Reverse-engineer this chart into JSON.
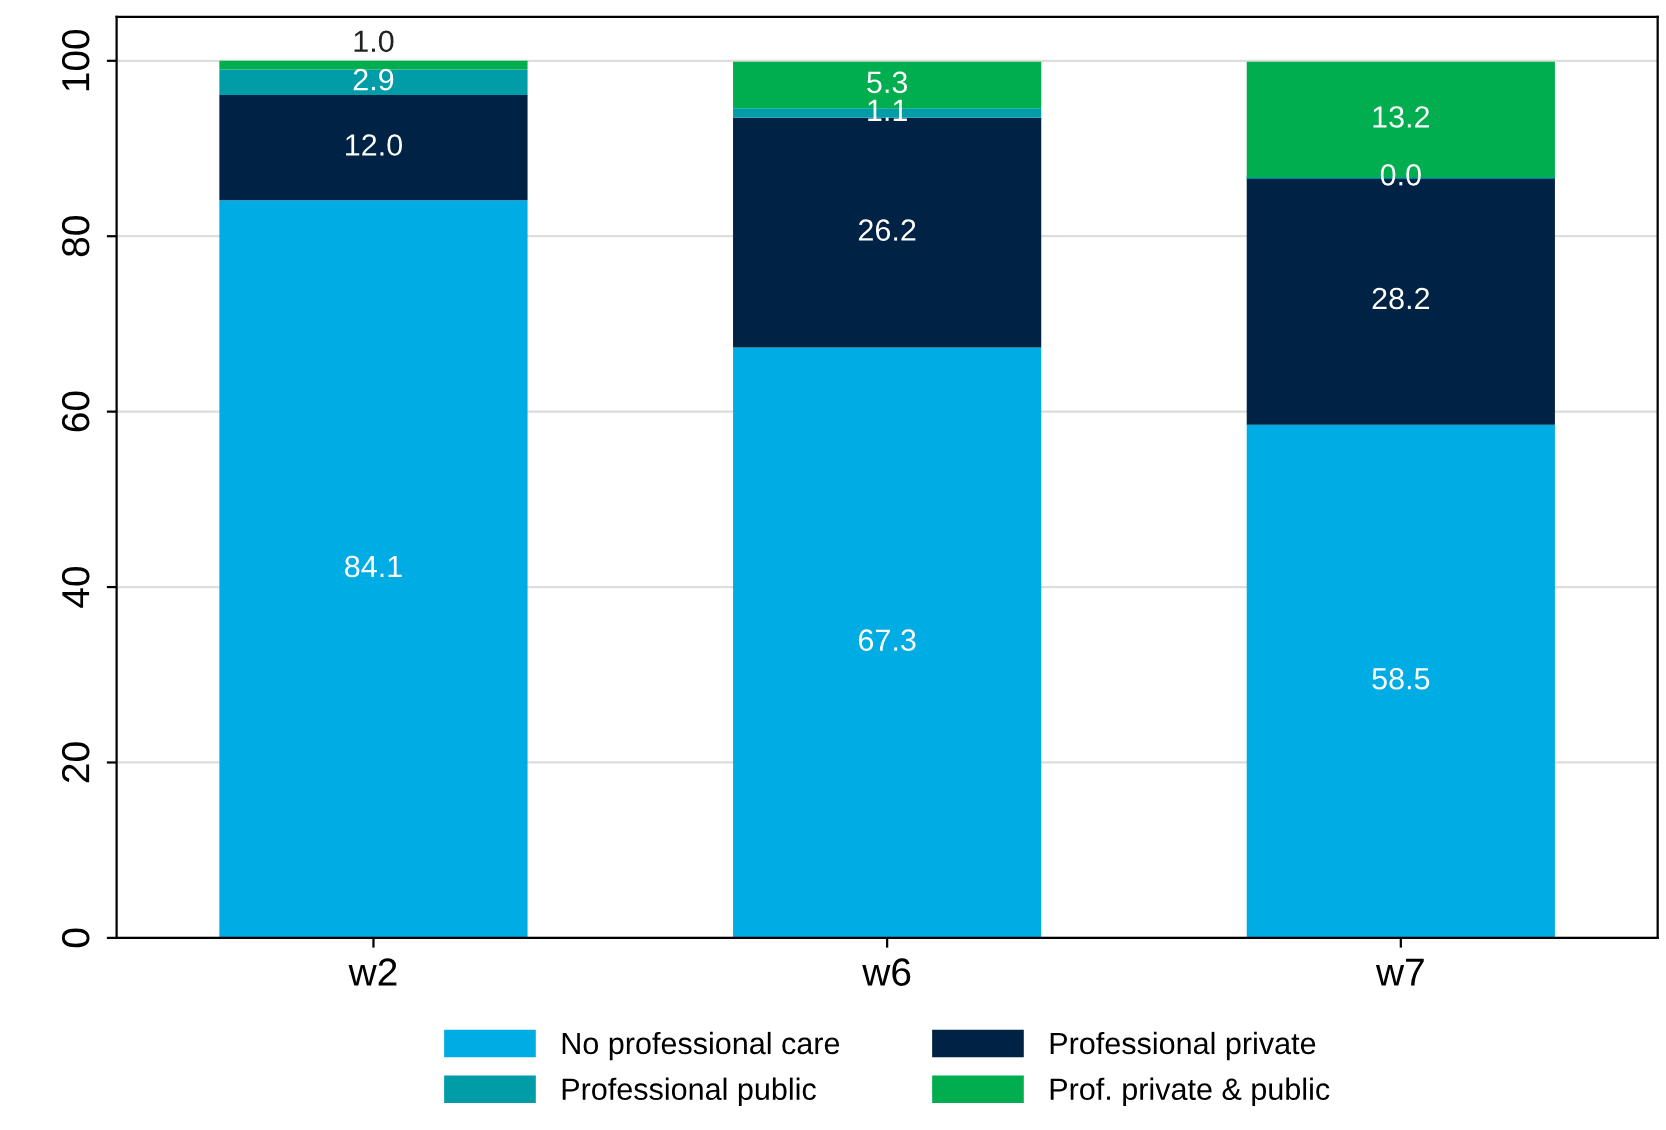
{
  "chart_data": {
    "type": "bar",
    "stacked": true,
    "categories": [
      "w2",
      "w6",
      "w7"
    ],
    "series": [
      {
        "name": "No professional care",
        "color": "#00ace4",
        "values": [
          84.1,
          67.3,
          58.5
        ],
        "value_labels": [
          "84.1",
          "67.3",
          "58.5"
        ]
      },
      {
        "name": "Professional private",
        "color": "#002244",
        "values": [
          12.0,
          26.2,
          28.2
        ],
        "value_labels": [
          "12.0",
          "26.2",
          "28.2"
        ]
      },
      {
        "name": "Professional public",
        "color": "#009ca8",
        "values": [
          2.9,
          1.1,
          0.0
        ],
        "value_labels": [
          "2.9",
          "1.1",
          "0.0"
        ]
      },
      {
        "name": "Prof. private & public",
        "color": "#00ae4f",
        "values": [
          1.0,
          5.3,
          13.2
        ],
        "value_labels": [
          "1.0",
          "5.3",
          "13.2"
        ]
      }
    ],
    "ylim": [
      0,
      105
    ],
    "yticks": [
      0,
      20,
      40,
      60,
      80,
      100
    ],
    "grid": "y",
    "legend": "bottom"
  }
}
